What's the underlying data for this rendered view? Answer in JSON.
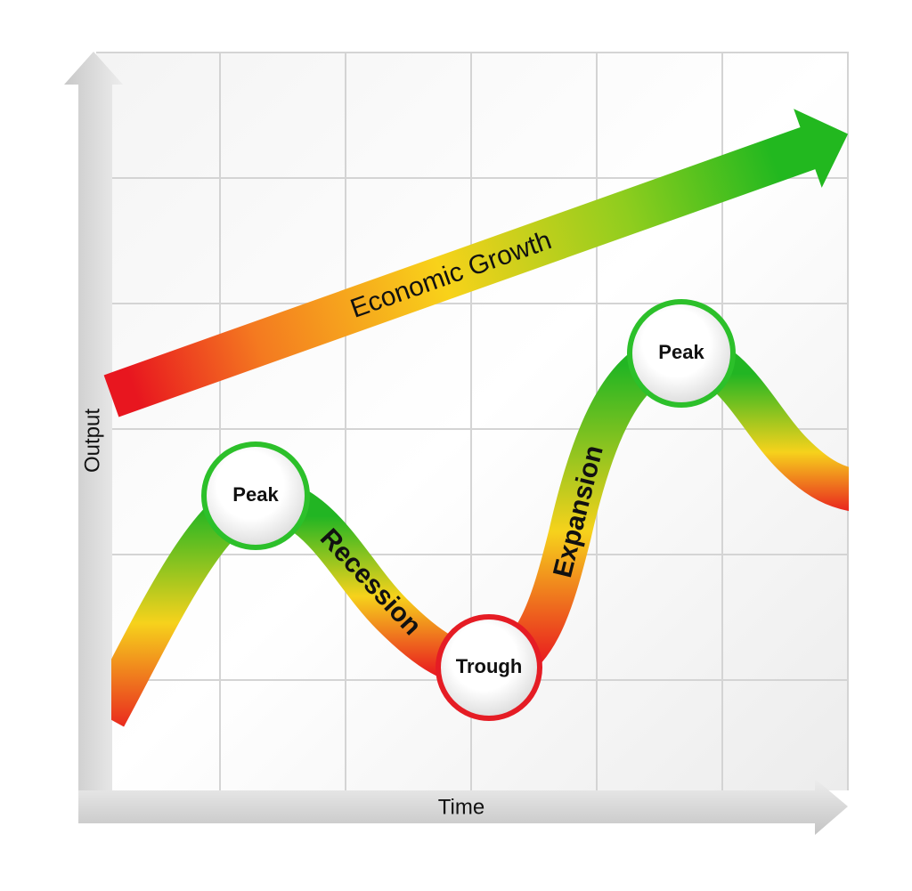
{
  "axes": {
    "y_label": "Output",
    "x_label": "Time"
  },
  "growth_arrow": {
    "label": "Economic Growth"
  },
  "cycle": {
    "nodes": [
      {
        "label": "Peak"
      },
      {
        "label": "Trough"
      },
      {
        "label": "Peak"
      }
    ],
    "phases": [
      {
        "label": "Recession"
      },
      {
        "label": "Expansion"
      }
    ]
  }
}
